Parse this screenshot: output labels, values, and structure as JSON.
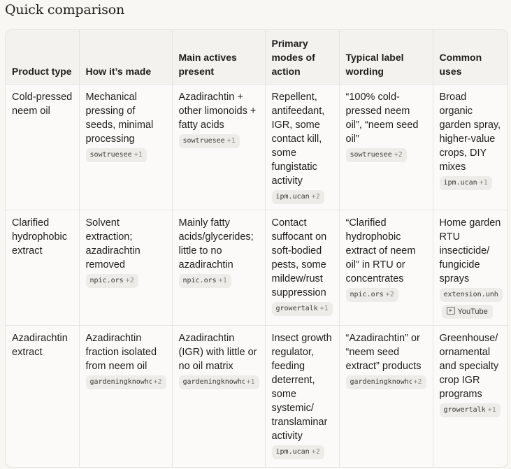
{
  "section": {
    "title": "Quick comparison"
  },
  "table": {
    "headers": [
      "Product type",
      "How it’s made",
      "Main actives present",
      "Primary modes of action",
      "Typical label wording",
      "Common uses"
    ],
    "rows": [
      {
        "cells": [
          {
            "text": "Cold-pressed neem oil"
          },
          {
            "text": "Mechanical pressing of seeds, minimal processing",
            "source": "sowtruesee",
            "more": "+1"
          },
          {
            "text": "Azadirachtin + other limonoids + fatty acids",
            "source": "sowtruesee",
            "more": "+1"
          },
          {
            "text": "Repellent, antifeedant, IGR, some contact kill, some fungistatic activity",
            "source": "ipm.ucan",
            "more": "+2"
          },
          {
            "text": "“100% cold-pressed neem oil”, “neem seed oil”",
            "source": "sowtruesee",
            "more": "+2"
          },
          {
            "text": "Broad organic garden spray, higher-value crops, DIY mixes",
            "source": "ipm.ucan",
            "more": "+1"
          }
        ]
      },
      {
        "cells": [
          {
            "text": "Clarified hydrophobic extract"
          },
          {
            "text": "Solvent extraction; azadirachtin removed",
            "source": "npic.ors",
            "more": "+2"
          },
          {
            "text": "Mainly fatty acids/glycerides; little to no azadirachtin",
            "source": "npic.ors",
            "more": "+1"
          },
          {
            "text": "Contact suffocant on soft-bodied pests, some mildew/rust suppression",
            "source": "growertalk",
            "more": "+1"
          },
          {
            "text": "“Clarified hydrophobic extract of neem oil” in RTU or concentrates",
            "source": "npic.ors",
            "more": "+2"
          },
          {
            "text": "Home garden RTU insecticide/ fungicide sprays",
            "source": "extension.unh",
            "more": "",
            "extra_source": "YouTube",
            "extra_icon": "youtube-play-icon"
          }
        ]
      },
      {
        "cells": [
          {
            "text": "Azadirachtin extract"
          },
          {
            "text": "Azadirachtin fraction isolated from neem oil",
            "source": "gardeningknowhc",
            "more": "+2"
          },
          {
            "text": "Azadirachtin (IGR) with little or no oil matrix",
            "source": "gardeningknowhc",
            "more": "+1"
          },
          {
            "text": "Insect growth regulator, feeding deterrent, some systemic/ translaminar activity",
            "source": "ipm.ucan",
            "more": "+2"
          },
          {
            "text": "“Azadirachtin” or “neem seed extract” products",
            "source": "gardeningknowhc",
            "more": "+2"
          },
          {
            "text": "Greenhouse/ ornamental and specialty crop IGR programs",
            "source": "growertalk",
            "more": "+1"
          }
        ]
      }
    ]
  },
  "colors": {
    "page_background": "#f8f7f3",
    "header_background": "#f3f2ef",
    "cell_background": "#fbfaf8",
    "border": "#e6e4df",
    "chip_background": "#eeece8",
    "text": "#1f1e1b",
    "muted": "#8a8883"
  }
}
